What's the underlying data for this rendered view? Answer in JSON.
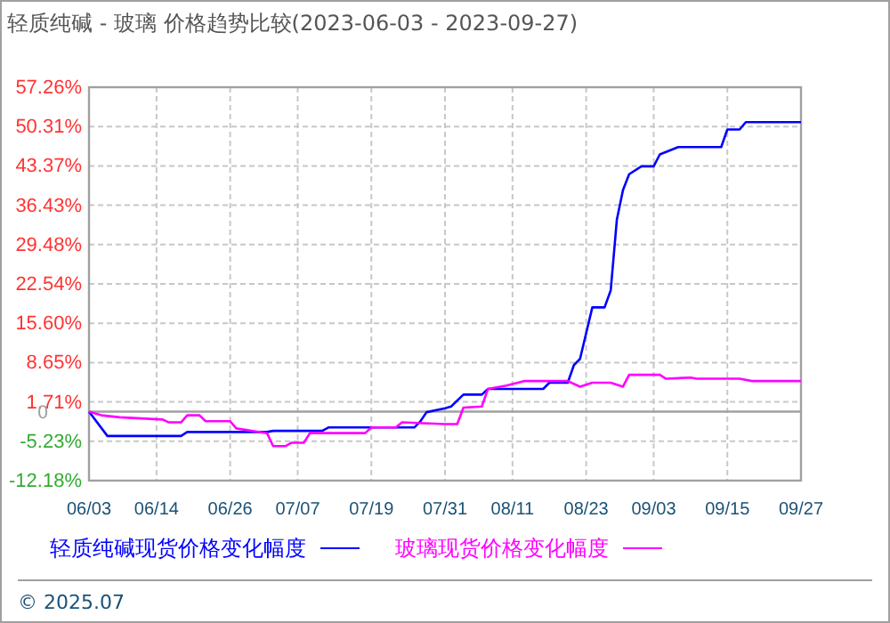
{
  "chart_data": {
    "type": "line",
    "title": "轻质纯碱 - 玻璃 价格趋势比较(2023-06-03 - 2023-09-27)",
    "xlim": [
      "2023-06-03",
      "2023-09-27"
    ],
    "xticks": [
      {
        "value": "2023-06-03",
        "label": "06/03"
      },
      {
        "value": "2023-06-14",
        "label": "06/14"
      },
      {
        "value": "2023-06-26",
        "label": "06/26"
      },
      {
        "value": "2023-07-07",
        "label": "07/07"
      },
      {
        "value": "2023-07-19",
        "label": "07/19"
      },
      {
        "value": "2023-07-31",
        "label": "07/31"
      },
      {
        "value": "2023-08-11",
        "label": "08/11"
      },
      {
        "value": "2023-08-23",
        "label": "08/23"
      },
      {
        "value": "2023-09-03",
        "label": "09/03"
      },
      {
        "value": "2023-09-15",
        "label": "09/15"
      },
      {
        "value": "2023-09-27",
        "label": "09/27"
      }
    ],
    "ylim": [
      -12.18,
      57.26
    ],
    "yticks": [
      {
        "value": -12.18,
        "label": "-12.18%"
      },
      {
        "value": -5.23,
        "label": "-5.23%"
      },
      {
        "value": 1.71,
        "label": "1.71%"
      },
      {
        "value": 8.65,
        "label": "8.65%"
      },
      {
        "value": 15.6,
        "label": "15.60%"
      },
      {
        "value": 22.54,
        "label": "22.54%"
      },
      {
        "value": 29.48,
        "label": "29.48%"
      },
      {
        "value": 36.43,
        "label": "36.43%"
      },
      {
        "value": 43.37,
        "label": "43.37%"
      },
      {
        "value": 50.31,
        "label": "50.31%"
      },
      {
        "value": 57.26,
        "label": "57.26%"
      }
    ],
    "grid": true,
    "legend": "bottom",
    "marker": "none",
    "line_style": "solid",
    "ref_lines": [
      {
        "axis": "y",
        "value": 0,
        "label": "0",
        "color": "#a0a0a0"
      }
    ],
    "annotations": [
      "© 2025.07"
    ],
    "series": [
      {
        "name": "轻质纯碱现货价格变化幅度",
        "color": "#0000ff",
        "x": [
          "2023-06-03",
          "2023-06-06",
          "2023-06-18",
          "2023-06-19",
          "2023-07-02",
          "2023-07-03",
          "2023-07-11",
          "2023-07-12",
          "2023-07-26",
          "2023-07-27",
          "2023-07-28",
          "2023-07-31",
          "2023-08-01",
          "2023-08-03",
          "2023-08-06",
          "2023-08-07",
          "2023-08-16",
          "2023-08-17",
          "2023-08-20",
          "2023-08-21",
          "2023-08-22",
          "2023-08-24",
          "2023-08-26",
          "2023-08-27",
          "2023-08-28",
          "2023-08-29",
          "2023-08-30",
          "2023-09-01",
          "2023-09-03",
          "2023-09-04",
          "2023-09-07",
          "2023-09-14",
          "2023-09-15",
          "2023-09-17",
          "2023-09-18",
          "2023-09-27"
        ],
        "values": [
          0,
          -4.3,
          -4.3,
          -3.6,
          -3.6,
          -3.4,
          -3.4,
          -2.8,
          -2.8,
          -1.7,
          -0.1,
          0.6,
          0.9,
          3.0,
          3.0,
          4.0,
          4.0,
          5.1,
          5.1,
          8.2,
          9.3,
          18.4,
          18.4,
          21.4,
          33.9,
          39.1,
          41.9,
          43.3,
          43.3,
          45.4,
          46.7,
          46.7,
          49.8,
          49.8,
          51.1,
          51.1
        ]
      },
      {
        "name": "玻璃现货价格变化幅度",
        "color": "#ff00ff",
        "x": [
          "2023-06-03",
          "2023-06-05",
          "2023-06-08",
          "2023-06-15",
          "2023-06-16",
          "2023-06-18",
          "2023-06-19",
          "2023-06-21",
          "2023-06-22",
          "2023-06-26",
          "2023-06-27",
          "2023-07-02",
          "2023-07-03",
          "2023-07-05",
          "2023-07-06",
          "2023-07-08",
          "2023-07-09",
          "2023-07-18",
          "2023-07-19",
          "2023-07-23",
          "2023-07-24",
          "2023-07-31",
          "2023-08-02",
          "2023-08-03",
          "2023-08-06",
          "2023-08-07",
          "2023-08-10",
          "2023-08-13",
          "2023-08-20",
          "2023-08-22",
          "2023-08-24",
          "2023-08-27",
          "2023-08-29",
          "2023-08-30",
          "2023-09-04",
          "2023-09-05",
          "2023-09-09",
          "2023-09-10",
          "2023-09-17",
          "2023-09-19",
          "2023-09-27"
        ],
        "values": [
          0,
          -0.65,
          -1.0,
          -1.4,
          -1.9,
          -1.9,
          -0.65,
          -0.65,
          -1.7,
          -1.7,
          -2.97,
          -3.8,
          -6.1,
          -6.1,
          -5.5,
          -5.5,
          -3.8,
          -3.8,
          -2.8,
          -2.8,
          -1.9,
          -2.2,
          -2.2,
          0.7,
          0.9,
          4.0,
          4.6,
          5.4,
          5.4,
          4.4,
          5.1,
          5.1,
          4.4,
          6.5,
          6.5,
          5.8,
          6.0,
          5.8,
          5.8,
          5.4,
          5.4
        ]
      }
    ]
  }
}
